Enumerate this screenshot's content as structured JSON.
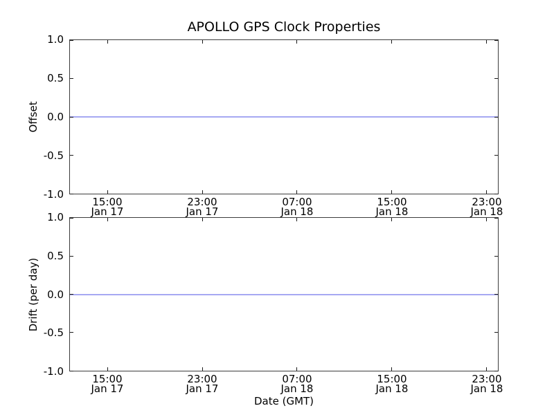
{
  "figure": {
    "title": "APOLLO GPS Clock Properties",
    "xlabel": "Date (GMT)",
    "background": "#ffffff"
  },
  "colors": {
    "data_line": "#a6a8f2",
    "axes_frame": "#3c3c3c",
    "tick_mark": "#1a1a1a",
    "text": "#000000"
  },
  "chart_data": [
    {
      "type": "line",
      "subplot": "top",
      "title": "APOLLO GPS Clock Properties",
      "xlabel": "",
      "ylabel": "Offset",
      "ylim": [
        -1.0,
        1.0
      ],
      "ytick_labels": [
        "1.0",
        "0.5",
        "0.0",
        "-0.5",
        "-1.0"
      ],
      "xticks": [
        {
          "time": "15:00",
          "date": "Jan 17"
        },
        {
          "time": "23:00",
          "date": "Jan 17"
        },
        {
          "time": "07:00",
          "date": "Jan 18"
        },
        {
          "time": "15:00",
          "date": "Jan 18"
        },
        {
          "time": "23:00",
          "date": "Jan 18"
        }
      ],
      "grid": false,
      "legend": null,
      "series": [
        {
          "name": "Offset",
          "color": "#a6a8f2",
          "x_range": [
            "Jan 17 ~12:00",
            "Jan 18 ~24:00"
          ],
          "y_constant": 0.0,
          "description": "flat horizontal line at 0.0 spanning full x-range"
        }
      ]
    },
    {
      "type": "line",
      "subplot": "bottom",
      "title": "",
      "xlabel": "Date (GMT)",
      "ylabel": "Drift (per day)",
      "ylim": [
        -1.0,
        1.0
      ],
      "ytick_labels": [
        "1.0",
        "0.5",
        "0.0",
        "-0.5",
        "-1.0"
      ],
      "xticks": [
        {
          "time": "15:00",
          "date": "Jan 17"
        },
        {
          "time": "23:00",
          "date": "Jan 17"
        },
        {
          "time": "07:00",
          "date": "Jan 18"
        },
        {
          "time": "15:00",
          "date": "Jan 18"
        },
        {
          "time": "23:00",
          "date": "Jan 18"
        }
      ],
      "grid": false,
      "legend": null,
      "series": [
        {
          "name": "Drift (per day)",
          "color": "#a6a8f2",
          "x_range": [
            "Jan 17 ~12:00",
            "Jan 18 ~24:00"
          ],
          "y_constant": 0.0,
          "description": "flat horizontal line at 0.0 spanning full x-range"
        }
      ]
    }
  ]
}
